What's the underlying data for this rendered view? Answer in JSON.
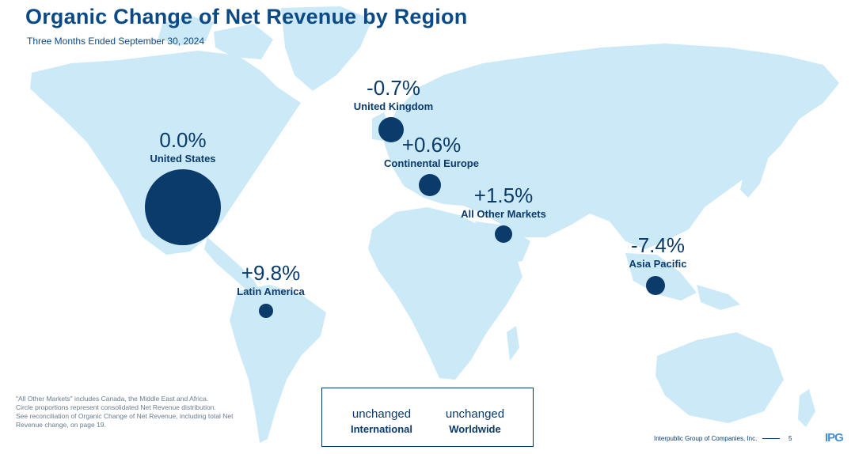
{
  "header": {
    "title": "Organic Change of Net Revenue by Region",
    "subtitle": "Three Months Ended September 30, 2024"
  },
  "colors": {
    "land": "#cce9f8",
    "bubble": "#0b3b6b",
    "title": "#0b4a85"
  },
  "regions": [
    {
      "name": "United States",
      "change": "0.0%"
    },
    {
      "name": "United Kingdom",
      "change": "-0.7%"
    },
    {
      "name": "Continental Europe",
      "change": "+0.6%"
    },
    {
      "name": "All Other Markets",
      "change": "+1.5%"
    },
    {
      "name": "Asia Pacific",
      "change": "-7.4%"
    },
    {
      "name": "Latin America",
      "change": "+9.8%"
    }
  ],
  "footnote": {
    "line1": "\"All Other Markets\" includes Canada, the Middle East and Africa.",
    "line2": "Circle proportions represent consolidated Net Revenue distribution.",
    "line3": "See reconciliation of Organic Change of Net Revenue, including total Net Revenue change, on page 19."
  },
  "summary": {
    "international": {
      "value": "unchanged",
      "label": "International"
    },
    "worldwide": {
      "value": "unchanged",
      "label": "Worldwide"
    }
  },
  "footer": {
    "company": "Interpublic Group of Companies, Inc.",
    "page": "5",
    "logo_text": "IPG"
  }
}
